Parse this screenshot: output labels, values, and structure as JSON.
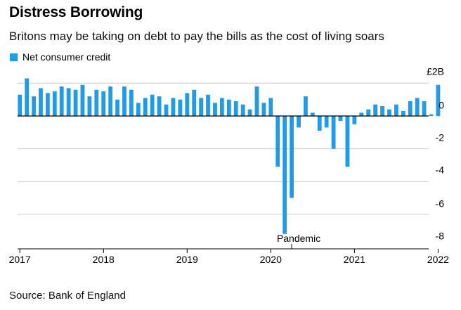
{
  "header": {
    "title": "Distress Borrowing",
    "subtitle": "Britons may be taking on debt to pay the bills as the cost of living soars"
  },
  "footer": {
    "source": "Source: Bank of England"
  },
  "colors": {
    "bar": "#1f9be8",
    "grid": "#cccccc",
    "zero": "#000000"
  },
  "chart_data": {
    "type": "bar",
    "title": "Distress Borrowing",
    "subtitle": "Britons may be taking on debt to pay the bills as the cost of living soars",
    "legend": [
      {
        "name": "Net consumer credit",
        "position": "top-left"
      }
    ],
    "ylabel": "",
    "xlabel": "",
    "y_unit_label": "£2B",
    "ylim": [
      -7.5,
      2.2
    ],
    "yticks": [
      2,
      0,
      -2,
      -4,
      -6,
      -8
    ],
    "ytick_labels": [
      "£2B",
      "0",
      "-2",
      "-4",
      "-6",
      "-8"
    ],
    "xticks": [
      "2017",
      "2018",
      "2019",
      "2020",
      "2021",
      "2022"
    ],
    "annotations": [
      {
        "text": "Pandemic",
        "at_month": "2020-04"
      }
    ],
    "grid": true,
    "start_month": "2017-01",
    "series": [
      {
        "name": "Net consumer credit",
        "values": [
          1.3,
          2.3,
          1.2,
          1.7,
          1.4,
          1.5,
          1.8,
          1.7,
          1.6,
          1.9,
          1.2,
          1.6,
          1.5,
          1.8,
          1.0,
          1.8,
          1.6,
          0.8,
          1.1,
          1.3,
          1.2,
          0.7,
          1.1,
          1.0,
          1.4,
          1.6,
          1.1,
          1.3,
          0.8,
          1.1,
          1.0,
          0.9,
          0.7,
          0.4,
          1.8,
          0.8,
          1.1,
          -3.1,
          -7.2,
          -5.0,
          -0.7,
          1.2,
          0.2,
          -0.9,
          -0.7,
          -2.0,
          -0.3,
          -3.1,
          -0.5,
          0.2,
          0.4,
          0.7,
          0.6,
          0.4,
          0.7,
          0.3,
          0.9,
          1.1,
          0.9,
          0.1,
          1.9
        ]
      }
    ]
  }
}
